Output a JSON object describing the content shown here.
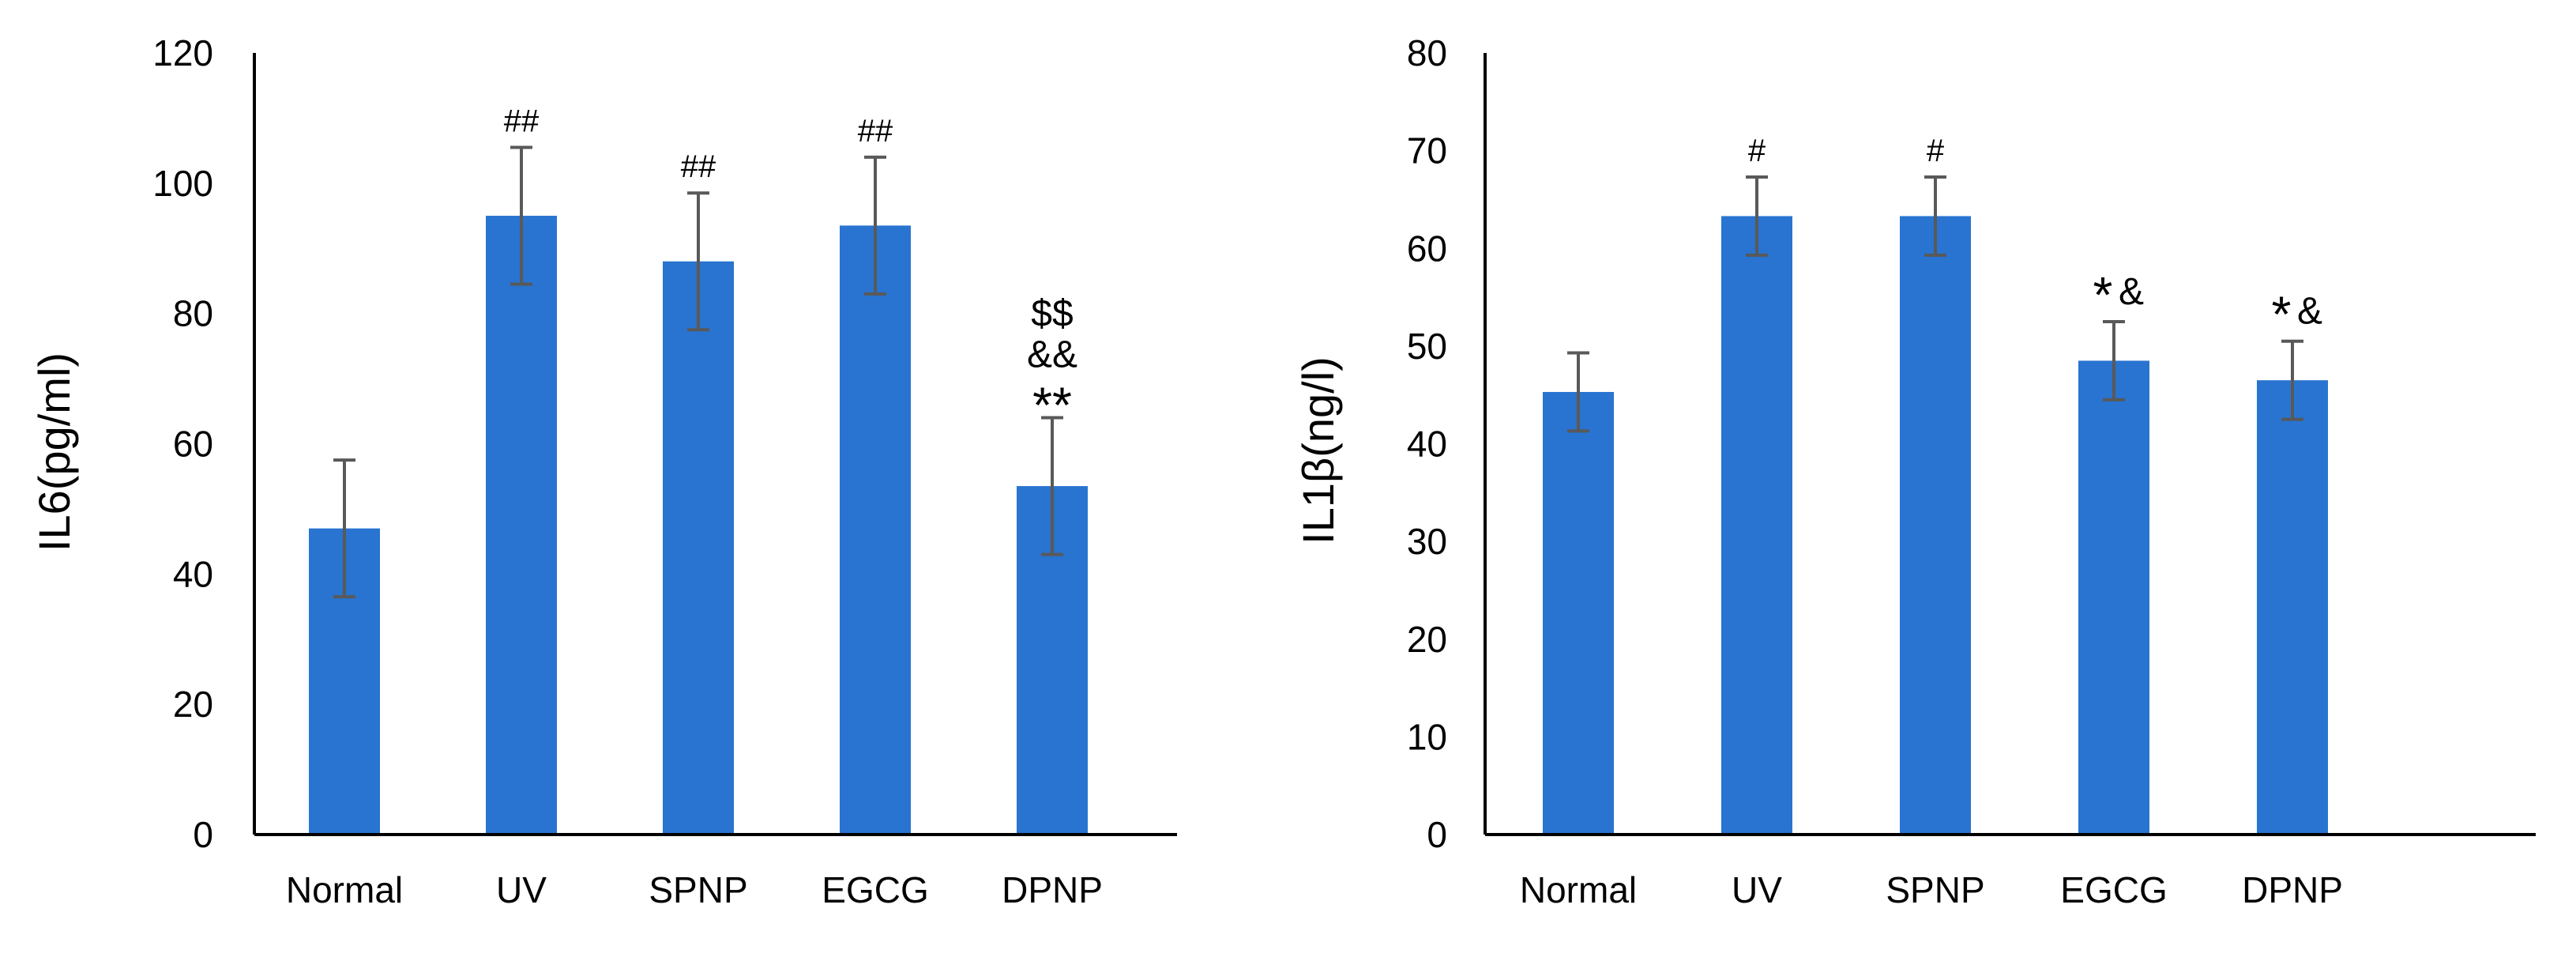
{
  "chart_data": [
    {
      "type": "bar",
      "title": "",
      "xlabel": "",
      "ylabel": "IL6(pg/ml)",
      "ylim": [
        0,
        120
      ],
      "yticks": [
        0,
        20,
        40,
        60,
        80,
        100,
        120
      ],
      "categories": [
        "Normal",
        "UV",
        "SPNP",
        "EGCG",
        "DPNP"
      ],
      "values": [
        47,
        95,
        88,
        93.5,
        53.5
      ],
      "errors": [
        10.5,
        10.5,
        10.5,
        10.5,
        10.5
      ],
      "annotations": [
        [],
        [
          {
            "text": "##",
            "style": "small"
          }
        ],
        [
          {
            "text": "##",
            "style": "small"
          }
        ],
        [
          {
            "text": "##",
            "style": "small"
          }
        ],
        [
          {
            "text": "$$",
            "style": "large"
          },
          {
            "text": "&&",
            "style": "large"
          },
          {
            "text": "**",
            "style": "star"
          }
        ]
      ],
      "bar_color": "#2874d0"
    },
    {
      "type": "bar",
      "title": "",
      "xlabel": "",
      "ylabel": "IL1β(ng/l)",
      "ylim": [
        0,
        80
      ],
      "yticks": [
        0,
        10,
        20,
        30,
        40,
        50,
        60,
        70,
        80
      ],
      "categories": [
        "Normal",
        "UV",
        "SPNP",
        "EGCG",
        "DPNP"
      ],
      "values": [
        45.3,
        63.3,
        63.3,
        48.5,
        46.5
      ],
      "errors": [
        4,
        4,
        4,
        4,
        4
      ],
      "annotations": [
        [],
        [
          {
            "text": "#",
            "style": "small"
          }
        ],
        [
          {
            "text": "#",
            "style": "small"
          }
        ],
        [
          {
            "text": "*",
            "style": "star"
          },
          {
            "text": "&",
            "style": "large"
          }
        ],
        [
          {
            "text": "*",
            "style": "star"
          },
          {
            "text": "&",
            "style": "large"
          }
        ]
      ],
      "bar_color": "#2874d0"
    }
  ]
}
